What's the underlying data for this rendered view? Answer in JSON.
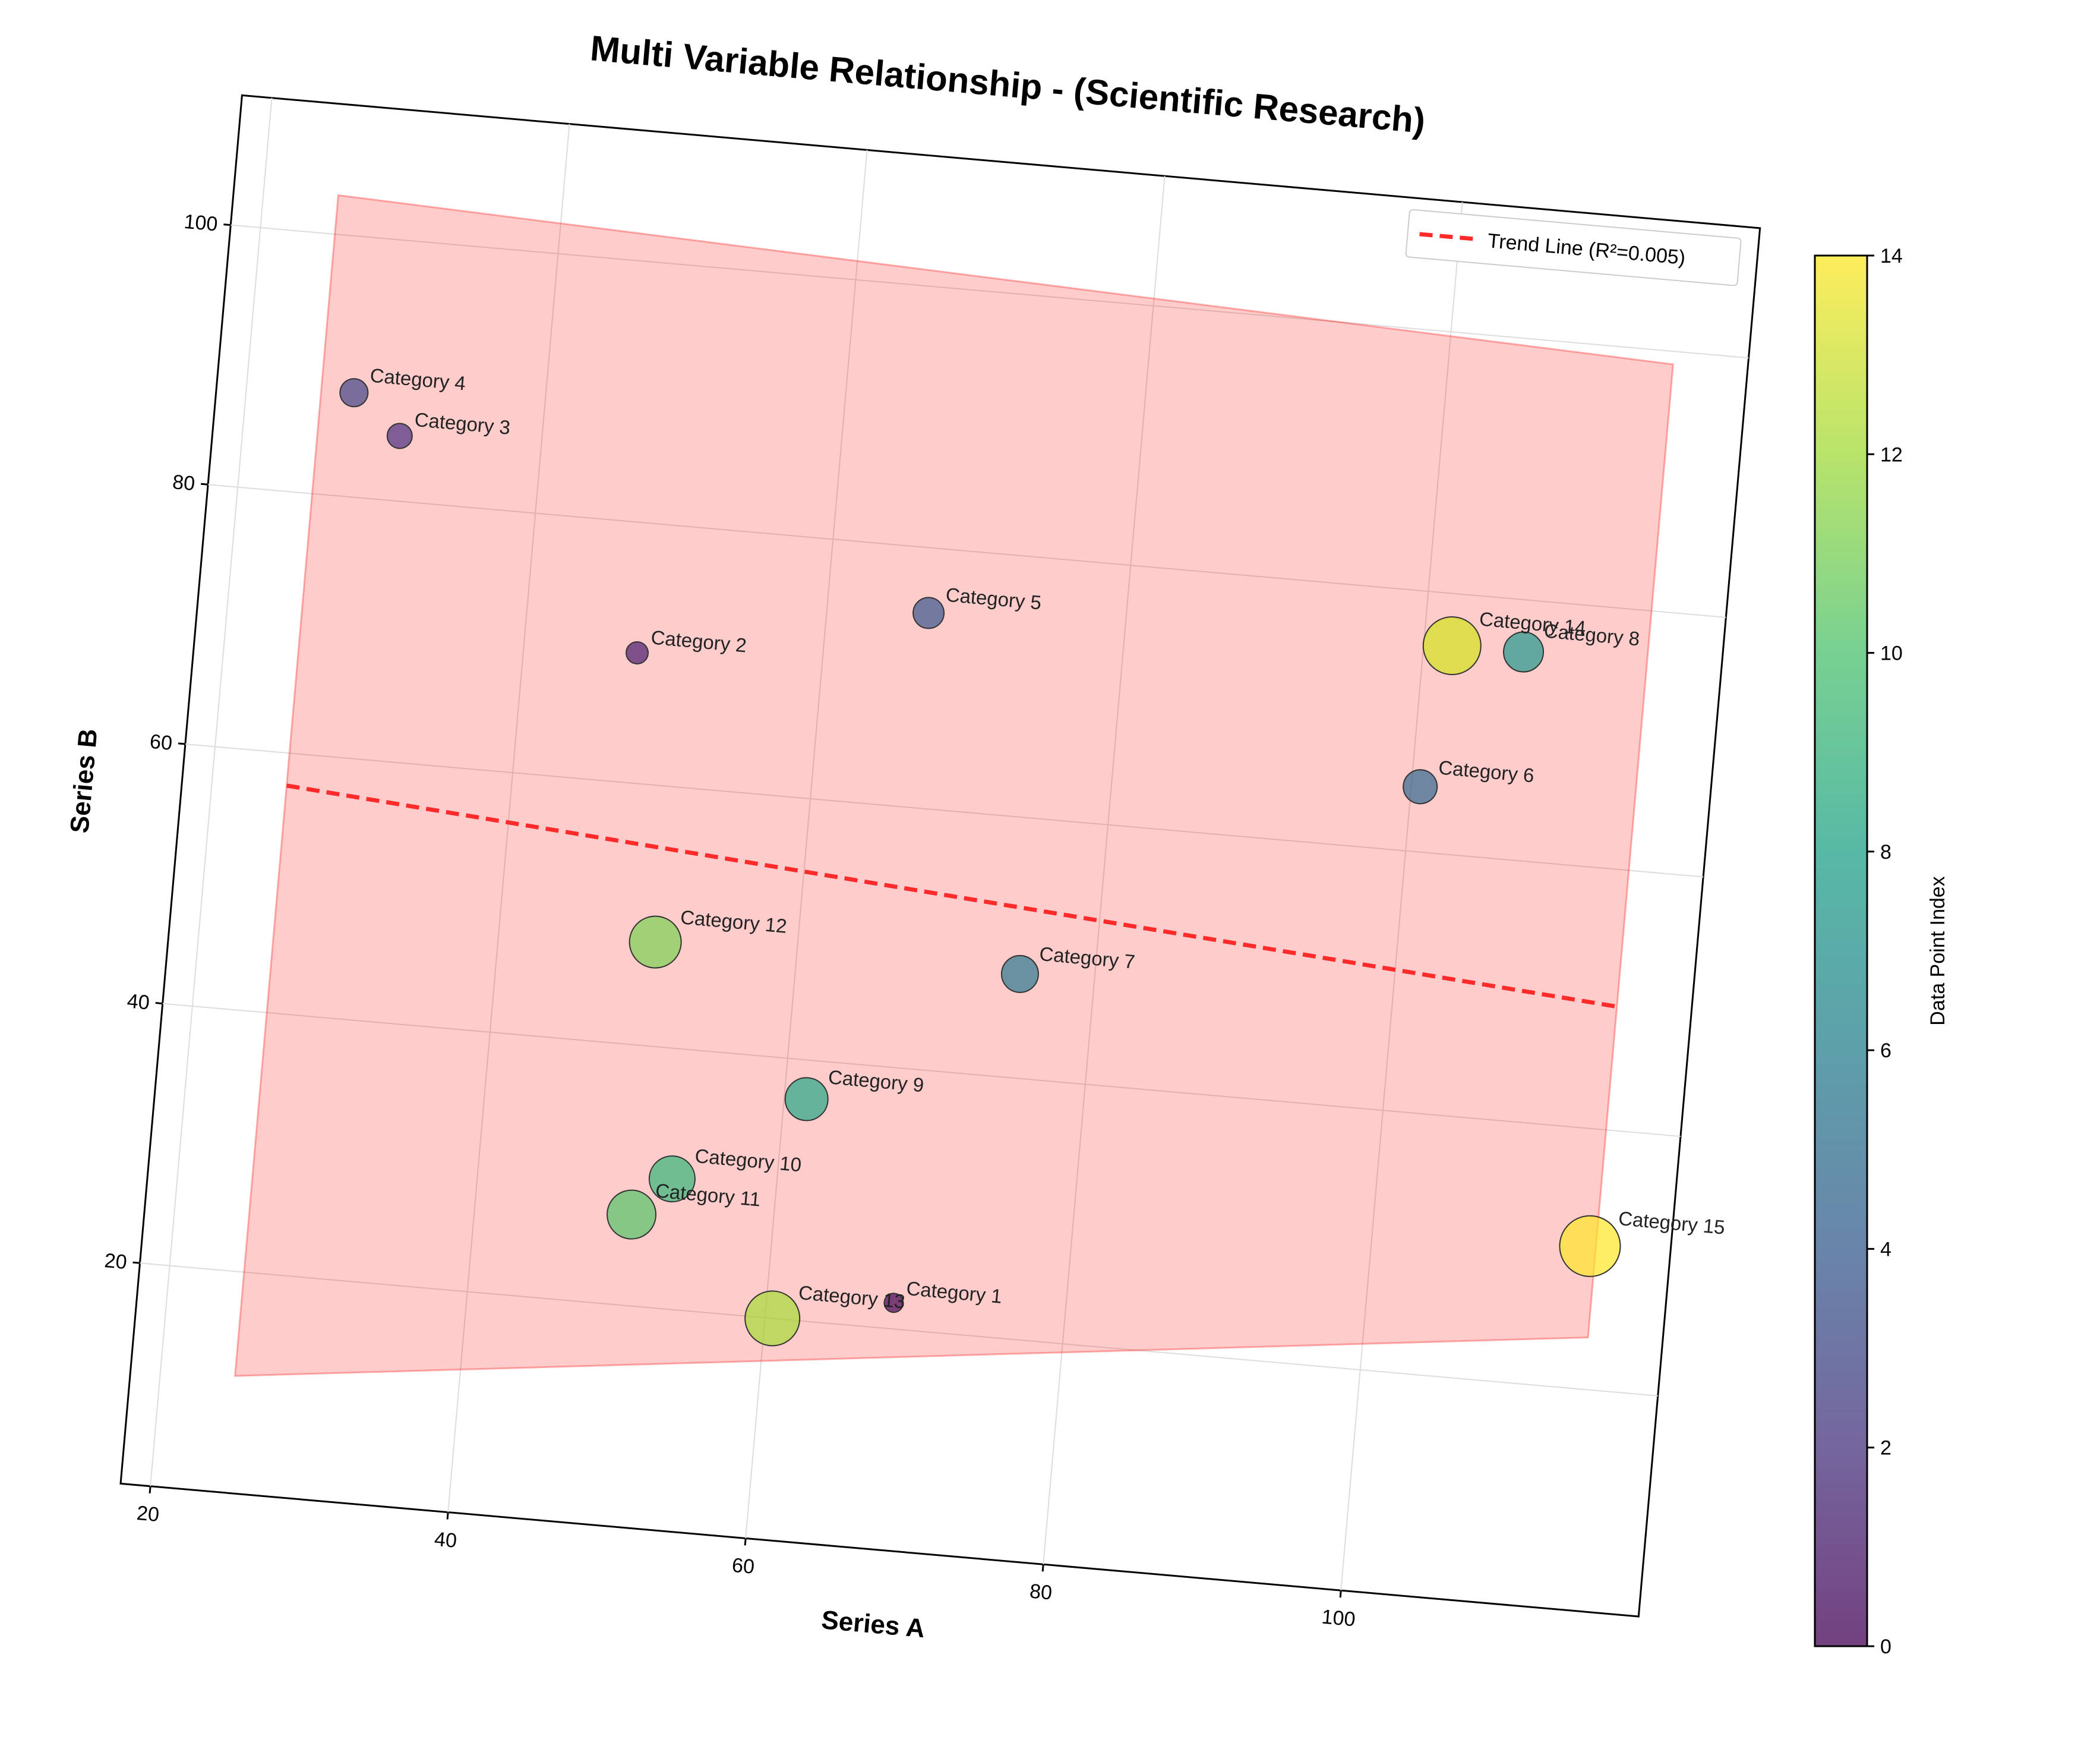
{
  "chart_data": {
    "type": "scatter",
    "title": "Multi Variable Relationship - (Scientific Research)",
    "xlabel": "Series A",
    "ylabel": "Series B",
    "xlim": [
      18,
      120
    ],
    "ylim": [
      3,
      110
    ],
    "x_ticks": [
      "20",
      "40",
      "60",
      "80",
      "100"
    ],
    "y_ticks": [
      "20",
      "40",
      "60",
      "80",
      "100"
    ],
    "grid": true,
    "points": [
      {
        "label": "Category 1",
        "x": 68.5,
        "y": 22,
        "size": 0,
        "index": 0
      },
      {
        "label": "Category 2",
        "x": 47.6,
        "y": 70,
        "size": 1,
        "index": 1
      },
      {
        "label": "Category 3",
        "x": 30.5,
        "y": 85,
        "size": 2,
        "index": 2
      },
      {
        "label": "Category 4",
        "x": 27.2,
        "y": 88,
        "size": 3,
        "index": 3
      },
      {
        "label": "Category 5",
        "x": 66.8,
        "y": 75,
        "size": 4,
        "index": 4
      },
      {
        "label": "Category 6",
        "x": 100.6,
        "y": 65,
        "size": 5,
        "index": 5
      },
      {
        "label": "Category 7",
        "x": 75,
        "y": 48,
        "size": 6,
        "index": 6
      },
      {
        "label": "Category 8",
        "x": 106.7,
        "y": 76,
        "size": 7,
        "index": 7
      },
      {
        "label": "Category 9",
        "x": 61.5,
        "y": 37,
        "size": 8,
        "index": 8
      },
      {
        "label": "Category 10",
        "x": 53,
        "y": 30,
        "size": 9,
        "index": 9
      },
      {
        "label": "Category 11",
        "x": 50.5,
        "y": 27,
        "size": 10,
        "index": 10
      },
      {
        "label": "Category 12",
        "x": 50.5,
        "y": 48,
        "size": 11,
        "index": 11
      },
      {
        "label": "Category 13",
        "x": 60.5,
        "y": 20,
        "size": 12,
        "index": 12
      },
      {
        "label": "Category 14",
        "x": 101.9,
        "y": 76,
        "size": 13,
        "index": 13
      },
      {
        "label": "Category 15",
        "x": 114.6,
        "y": 31,
        "size": 14,
        "index": 14
      }
    ],
    "trend_line": {
      "label": "Trend Line (R²=0.005)",
      "x": [
        25,
        115
      ],
      "y": [
        57.5,
        49.5
      ],
      "color": "#ff0000",
      "style": "dashed"
    },
    "confidence_band": {
      "x": [
        25,
        115
      ],
      "y_low": [
        12,
        24
      ],
      "y_high": [
        103,
        99
      ],
      "color": "#ff0000",
      "alpha": 0.2
    },
    "legend": {
      "placement": "top-right",
      "entries": [
        "Trend Line (R²=0.005)"
      ]
    },
    "colorbar": {
      "label": "Data Point Index",
      "min": 0,
      "max": 14,
      "ticks": [
        "0",
        "2",
        "4",
        "6",
        "8",
        "10",
        "12",
        "14"
      ],
      "colormap": "viridis"
    }
  }
}
